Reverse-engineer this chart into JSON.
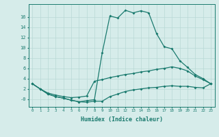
{
  "xlabel": "Humidex (Indice chaleur)",
  "background_color": "#d6ecea",
  "grid_color": "#b8d8d5",
  "line_color": "#1a7a6e",
  "x": [
    0,
    1,
    2,
    3,
    4,
    5,
    6,
    7,
    8,
    9,
    10,
    11,
    12,
    13,
    14,
    15,
    16,
    17,
    18,
    19,
    20,
    21,
    22,
    23
  ],
  "line1": [
    3.0,
    2.0,
    1.0,
    0.5,
    0.2,
    -0.2,
    -0.5,
    -0.3,
    -0.1,
    9.0,
    16.2,
    15.8,
    17.3,
    16.8,
    17.2,
    16.8,
    12.8,
    10.2,
    9.8,
    7.5,
    6.2,
    4.8,
    4.0,
    3.0
  ],
  "line2": [
    3.0,
    2.0,
    1.2,
    0.8,
    0.5,
    0.3,
    0.4,
    0.6,
    3.5,
    3.8,
    4.2,
    4.5,
    4.8,
    5.0,
    5.3,
    5.5,
    5.8,
    6.0,
    6.3,
    6.0,
    5.5,
    4.5,
    3.8,
    3.0
  ],
  "line3": [
    3.0,
    2.0,
    1.0,
    0.5,
    0.2,
    -0.2,
    -0.5,
    -0.6,
    -0.4,
    -0.4,
    0.5,
    1.0,
    1.5,
    1.8,
    2.0,
    2.2,
    2.3,
    2.5,
    2.6,
    2.5,
    2.5,
    2.3,
    2.2,
    3.0
  ],
  "ylim": [
    -1.5,
    18.5
  ],
  "yticks": [
    0,
    2,
    4,
    6,
    8,
    10,
    12,
    14,
    16
  ],
  "ytick_labels": [
    "-0",
    "2",
    "4",
    "6",
    "8",
    "10",
    "12",
    "14",
    "16"
  ]
}
